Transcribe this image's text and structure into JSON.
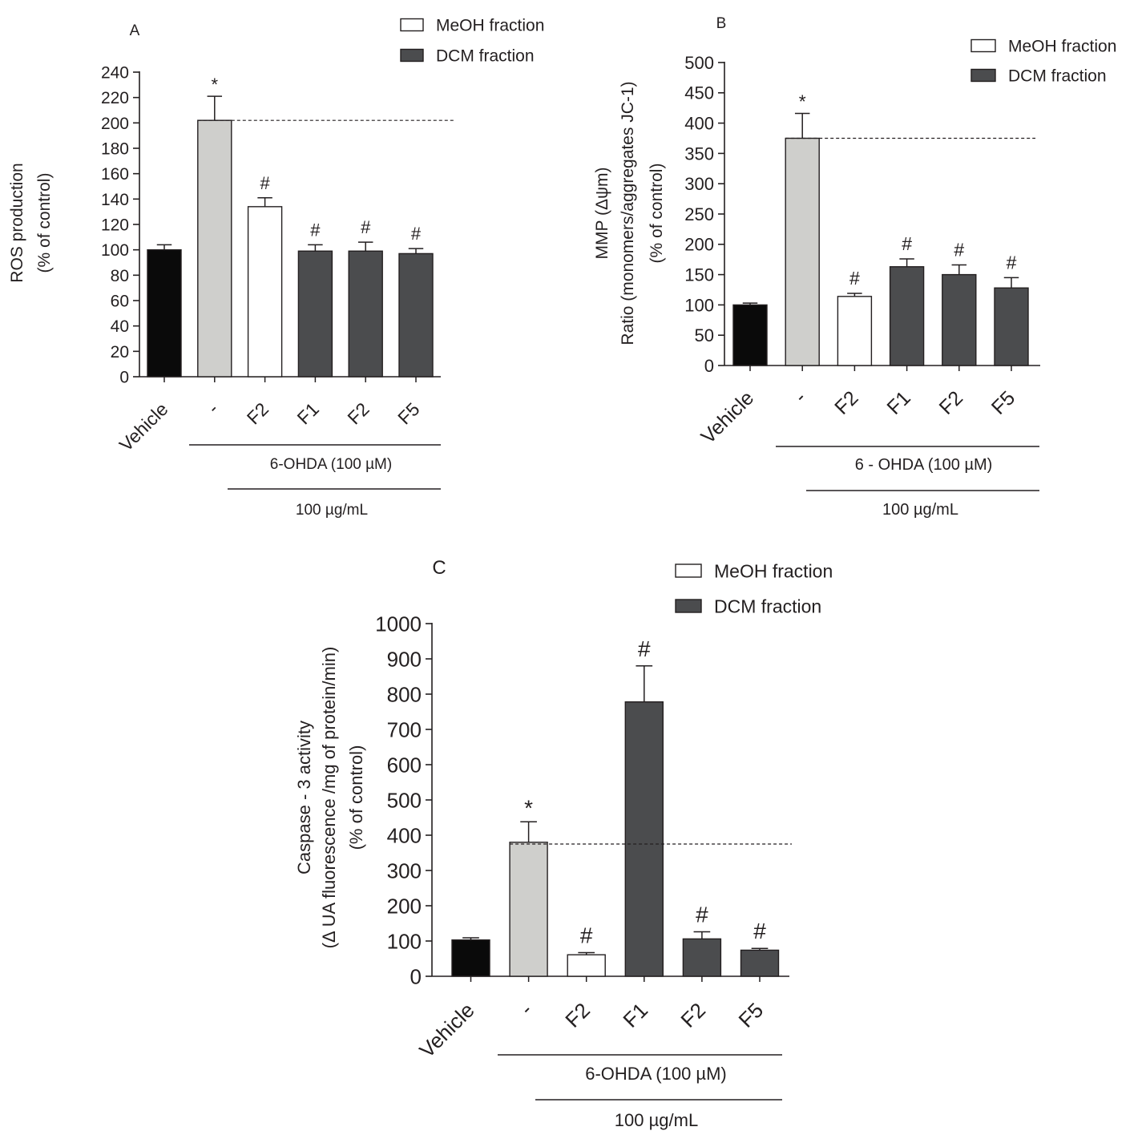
{
  "colors": {
    "vehicle": "#0a0a0a",
    "ohda": "#cfcfcc",
    "meoh": "#ffffff",
    "dcm": "#4b4c4e",
    "ink": "#231f20"
  },
  "chart_data": [
    {
      "panel": "A",
      "type": "bar",
      "title": "A",
      "categories": [
        "Vehicle",
        "-",
        "F2",
        "F1",
        "F2",
        "F5"
      ],
      "series": [
        {
          "name": "mean",
          "values": [
            100,
            202,
            134,
            99,
            99,
            97
          ]
        }
      ],
      "errors": [
        4,
        19,
        7,
        5,
        7,
        4
      ],
      "fills": [
        "vehicle",
        "ohda",
        "meoh",
        "dcm",
        "dcm",
        "dcm"
      ],
      "significance": [
        "",
        "*",
        "#",
        "#",
        "#",
        "#"
      ],
      "reference_line": 202,
      "ylabel": [
        "ROS production",
        "(% of control)"
      ],
      "ylim": [
        0,
        240
      ],
      "yticks": [
        0,
        20,
        40,
        60,
        80,
        100,
        120,
        140,
        160,
        180,
        200,
        220,
        240
      ],
      "legend": [
        {
          "label": "MeOH fraction",
          "fill": "meoh"
        },
        {
          "label": "DCM fraction",
          "fill": "dcm"
        }
      ],
      "treatment_label": "6-OHDA (100 µM)",
      "dose_label": "100 µg/mL"
    },
    {
      "panel": "B",
      "type": "bar",
      "title": "B",
      "categories": [
        "Vehicle",
        "-",
        "F2",
        "F1",
        "F2",
        "F5"
      ],
      "series": [
        {
          "name": "mean",
          "values": [
            100,
            375,
            114,
            163,
            150,
            128
          ]
        }
      ],
      "errors": [
        3,
        41,
        5,
        13,
        16,
        17
      ],
      "fills": [
        "vehicle",
        "ohda",
        "meoh",
        "dcm",
        "dcm",
        "dcm"
      ],
      "significance": [
        "",
        "*",
        "#",
        "#",
        "#",
        "#"
      ],
      "reference_line": 375,
      "ylabel": [
        "MMP (Δψm)",
        "Ratio (monomers/aggregates  JC-1)",
        "(% of control)"
      ],
      "ylim": [
        0,
        500
      ],
      "yticks": [
        0,
        50,
        100,
        150,
        200,
        250,
        300,
        350,
        400,
        450,
        500
      ],
      "legend": [
        {
          "label": "MeOH fraction",
          "fill": "meoh"
        },
        {
          "label": "DCM fraction",
          "fill": "dcm"
        }
      ],
      "treatment_label": "6 - OHDA (100 µM)",
      "dose_label": "100 µg/mL"
    },
    {
      "panel": "C",
      "type": "bar",
      "title": "C",
      "categories": [
        "Vehicle",
        "-",
        "F2",
        "F1",
        "F2",
        "F5"
      ],
      "series": [
        {
          "name": "mean",
          "values": [
            103,
            380,
            61,
            778,
            106,
            74
          ]
        }
      ],
      "errors": [
        6,
        58,
        6,
        102,
        20,
        5
      ],
      "fills": [
        "vehicle",
        "ohda",
        "meoh",
        "dcm",
        "dcm",
        "dcm"
      ],
      "significance": [
        "",
        "*",
        "#",
        "#",
        "#",
        "#"
      ],
      "reference_line": 375,
      "ylabel": [
        "Caspase - 3 activity",
        "(Δ UA fluorescence /mg of protein/min)",
        "(% of control)"
      ],
      "ylim": [
        0,
        1000
      ],
      "yticks": [
        0,
        100,
        200,
        300,
        400,
        500,
        600,
        700,
        800,
        900,
        1000
      ],
      "legend": [
        {
          "label": "MeOH fraction",
          "fill": "meoh"
        },
        {
          "label": "DCM fraction",
          "fill": "dcm"
        }
      ],
      "treatment_label": "6-OHDA (100 µM)",
      "dose_label": "100 µg/mL"
    }
  ]
}
